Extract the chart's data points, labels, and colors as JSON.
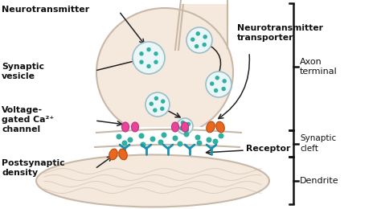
{
  "bg_color": "#ffffff",
  "neuron_bg": "#f5e8dc",
  "neuron_outline": "#c8b8a8",
  "vesicle_bg": "#eaf6f8",
  "vesicle_outline": "#9abfc8",
  "dot_color": "#30b0a0",
  "ca_channel_color": "#e8449a",
  "ca_channel_outline": "#c03080",
  "receptor_color": "#e86820",
  "receptor_outline": "#b84810",
  "density_color": "#1890b0",
  "arrow_color": "#222222",
  "label_color": "#111111",
  "bracket_color": "#111111",
  "labels": {
    "neurotransmitter": "Neurotransmitter",
    "synaptic_vesicle": "Synaptic\nvesicle",
    "voltage_gated": "Voltage-\ngated Ca²⁺\nchannel",
    "postsynaptic": "Postsynaptic\ndensity",
    "nt_transporter": "Neurotransmitter\ntransporter",
    "receptor": "Receptor",
    "axon_terminal": "Axon\nterminal",
    "synaptic_cleft": "Synaptic\ncleft",
    "dendrite": "Dendrite"
  },
  "figsize": [
    4.74,
    2.6
  ],
  "dpi": 100
}
